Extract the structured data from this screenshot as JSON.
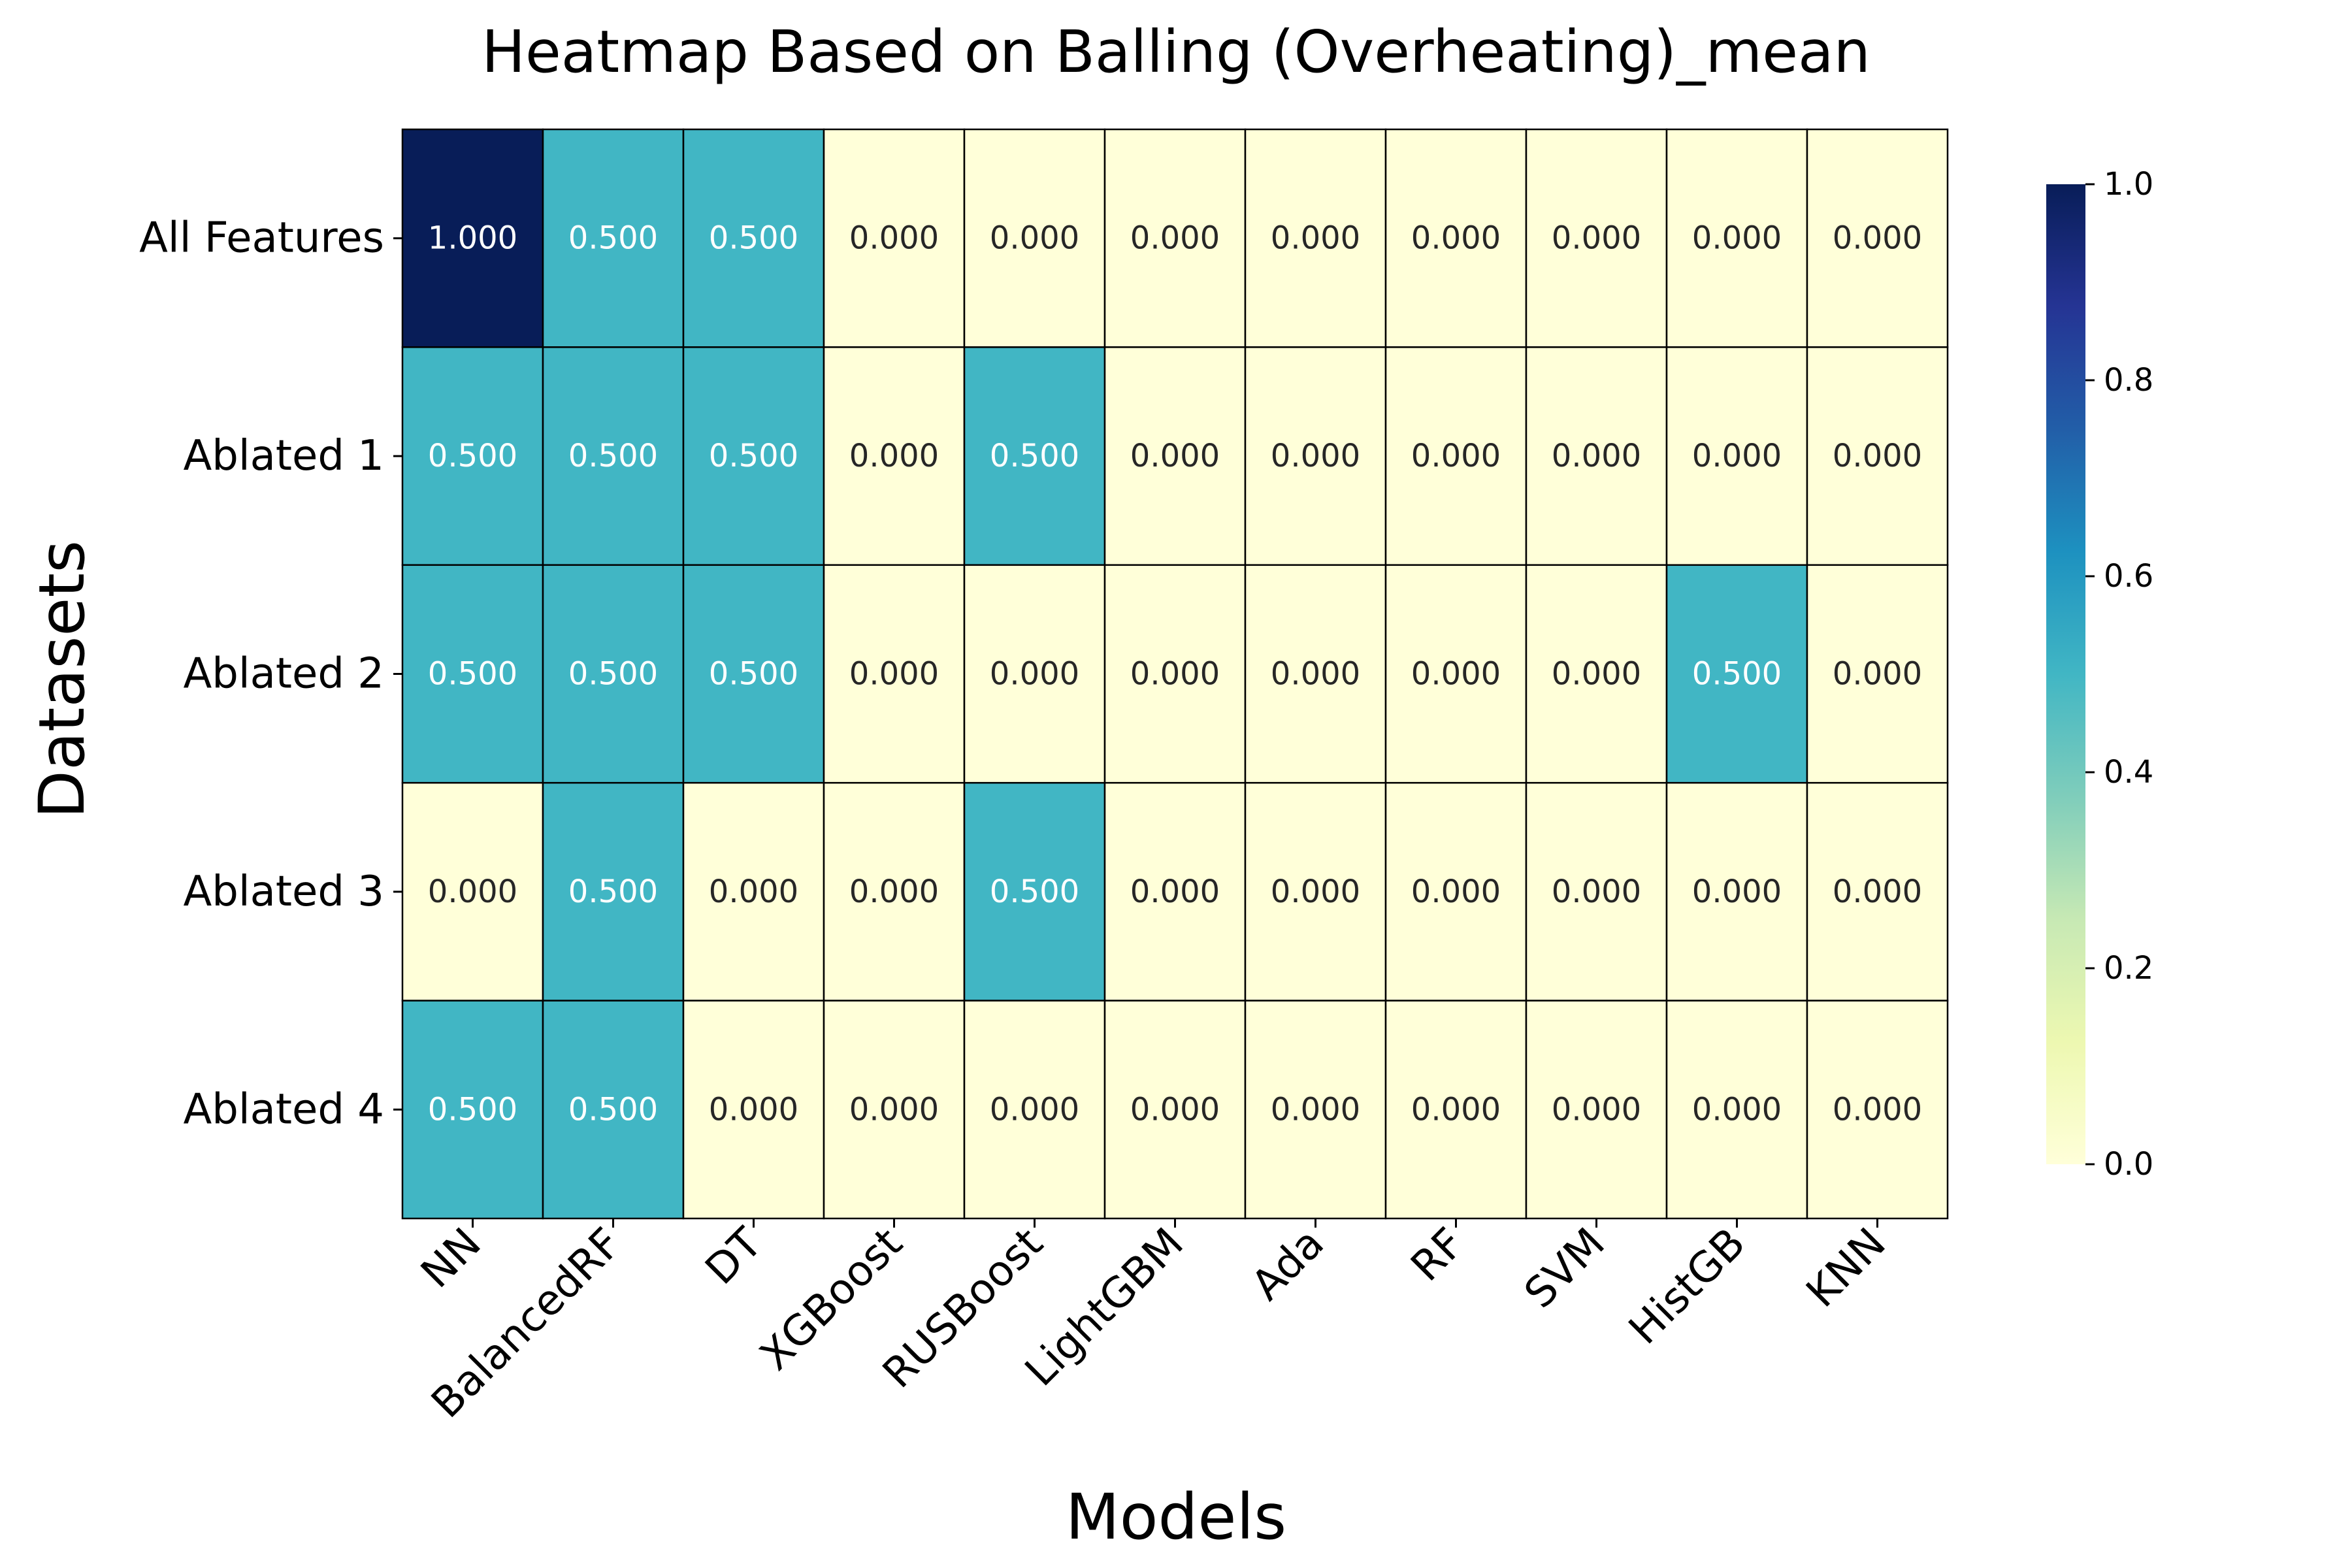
{
  "chart_data": {
    "type": "heatmap",
    "title": "Heatmap Based on Balling (Overheating)_mean",
    "xlabel": "Models",
    "ylabel": "Datasets",
    "columns": [
      "NN",
      "BalancedRF",
      "DT",
      "XGBoost",
      "RUSBoost",
      "LightGBM",
      "Ada",
      "RF",
      "SVM",
      "HistGB",
      "KNN"
    ],
    "rows": [
      "All Features",
      "Ablated 1",
      "Ablated 2",
      "Ablated 3",
      "Ablated 4"
    ],
    "values": [
      [
        1.0,
        0.5,
        0.5,
        0.0,
        0.0,
        0.0,
        0.0,
        0.0,
        0.0,
        0.0,
        0.0
      ],
      [
        0.5,
        0.5,
        0.5,
        0.0,
        0.5,
        0.0,
        0.0,
        0.0,
        0.0,
        0.0,
        0.0
      ],
      [
        0.5,
        0.5,
        0.5,
        0.0,
        0.0,
        0.0,
        0.0,
        0.0,
        0.0,
        0.5,
        0.0
      ],
      [
        0.0,
        0.5,
        0.0,
        0.0,
        0.5,
        0.0,
        0.0,
        0.0,
        0.0,
        0.0,
        0.0
      ],
      [
        0.5,
        0.5,
        0.0,
        0.0,
        0.0,
        0.0,
        0.0,
        0.0,
        0.0,
        0.0,
        0.0
      ]
    ],
    "value_format": "0.000",
    "colormap": "YlGnBu",
    "color_range": [
      0.0,
      1.0
    ],
    "colorbar_ticks": [
      "0.0",
      "0.2",
      "0.4",
      "0.6",
      "0.8",
      "1.0"
    ],
    "colorbar_position": "right",
    "cell_border_color": "#000000"
  }
}
